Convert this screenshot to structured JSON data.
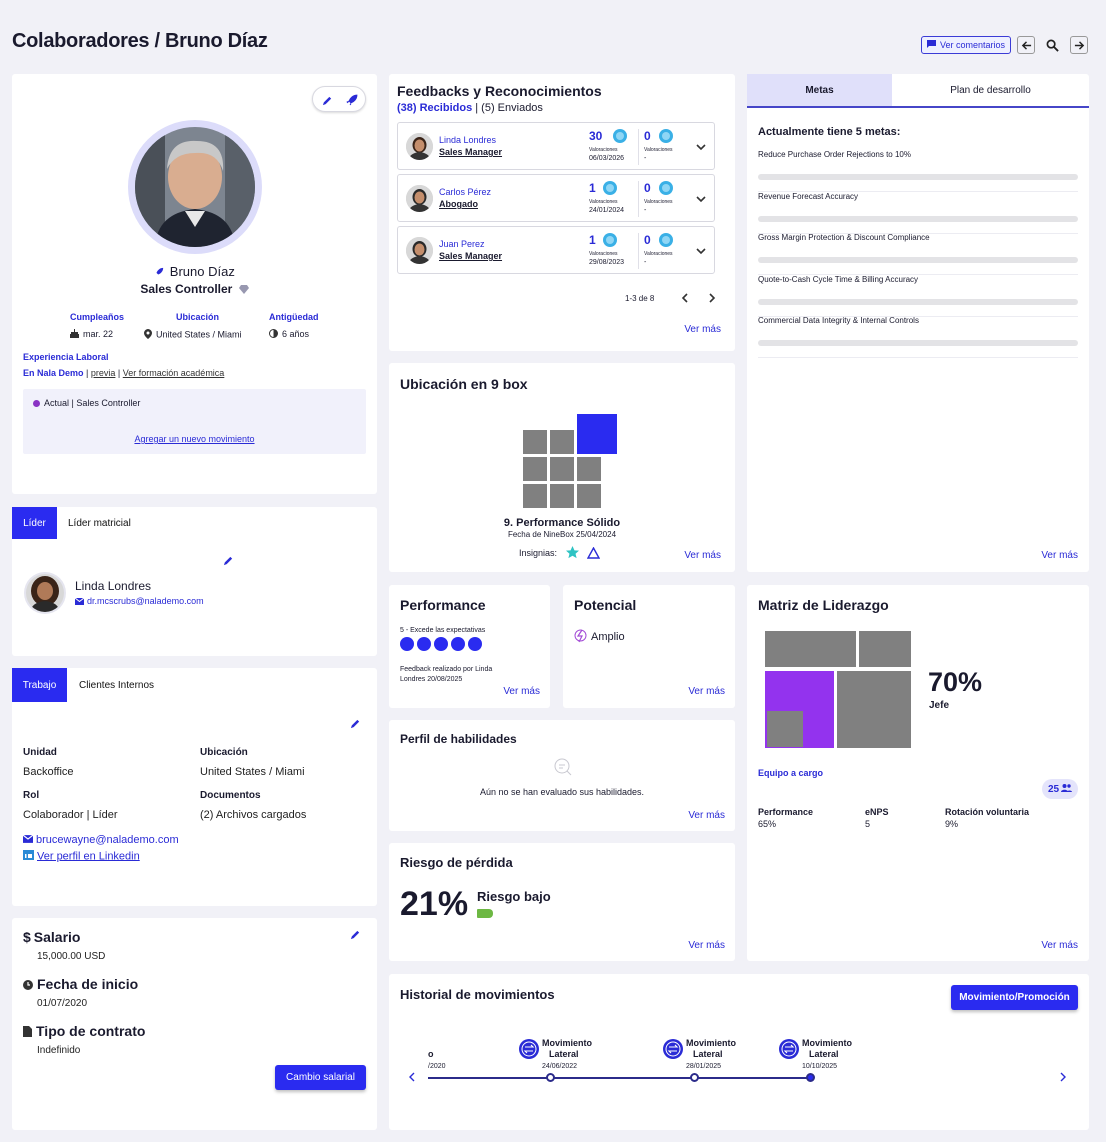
{
  "header": {
    "title": "Colaboradores / Bruno Díaz",
    "comments_label": "Ver comentarios"
  },
  "profile": {
    "name": "Bruno Díaz",
    "role": "Sales Controller",
    "birthday_label": "Cumpleaños",
    "birthday_value": "mar. 22",
    "location_label": "Ubicación",
    "location_value": "United States / Miami",
    "seniority_label": "Antigüedad",
    "seniority_value": "6 años",
    "exp_title": "Experiencia Laboral",
    "exp_link1": "En Nala Demo",
    "exp_link2": "previa",
    "exp_link3": "Ver formación académica",
    "current_label": "Actual | Sales Controller",
    "add_movement": "Agregar un nuevo movimiento"
  },
  "leader": {
    "tab1": "Líder",
    "tab2": "Líder matricial",
    "name": "Linda Londres",
    "email": "dr.mcscrubs@nalademo.com"
  },
  "work": {
    "tab1": "Trabajo",
    "tab2": "Clientes Internos",
    "unit_label": "Unidad",
    "unit_value": "Backoffice",
    "loc_label": "Ubicación",
    "loc_value": "United States / Miami",
    "role_label": "Rol",
    "role_value": "Colaborador | Líder",
    "docs_label": "Documentos",
    "docs_value": "(2) Archivos cargados",
    "email": "brucewayne@nalademo.com",
    "linkedin": "Ver perfil en Linkedin"
  },
  "salary": {
    "salary_label": "Salario",
    "salary_value": "15,000.00 USD",
    "start_label": "Fecha de inicio",
    "start_value": "01/07/2020",
    "contract_label": "Tipo de contrato",
    "contract_value": "Indefinido",
    "button": "Cambio salarial"
  },
  "feedback": {
    "title": "Feedbacks y Reconocimientos",
    "received": "(38) Recibidos",
    "sep": " | ",
    "sent": "(5) Enviados",
    "rows": [
      {
        "name": "Linda Londres",
        "role": "Sales Manager",
        "count1": "30",
        "count2": "0",
        "sub1": "Valoraciones",
        "sub2": "Valoraciones",
        "date": "06/03/2026",
        "dash": "-"
      },
      {
        "name": "Carlos Pérez",
        "role": "Abogado",
        "count1": "1",
        "count2": "0",
        "sub1": "Valoraciones",
        "sub2": "Valoraciones",
        "date": "24/01/2024",
        "dash": "-"
      },
      {
        "name": "Juan Perez",
        "role": "Sales Manager",
        "count1": "1",
        "count2": "0",
        "sub1": "Valoraciones",
        "sub2": "Valoraciones",
        "date": "29/08/2023",
        "dash": "-"
      }
    ],
    "pagination": "1-3 de 8",
    "more": "Ver más"
  },
  "ninebox": {
    "title": "Ubicación en 9 box",
    "label": "9. Performance Sólido",
    "date": "Fecha de NineBox 25/04/2024",
    "badges": "Insignias:",
    "more": "Ver más"
  },
  "goals": {
    "tab1": "Metas",
    "tab2": "Plan de desarrollo",
    "heading": "Actualmente tiene 5 metas:",
    "items": [
      "Reduce Purchase Order Rejections to 10%",
      "Revenue Forecast Accuracy",
      "Gross Margin Protection & Discount Compliance",
      "Quote-to-Cash Cycle Time & Billing Accuracy",
      "Commercial Data Integrity & Internal Controls"
    ],
    "more": "Ver más"
  },
  "performance": {
    "title": "Performance",
    "rating": "5 - Excede las expectativas",
    "rating_value": 5,
    "rating_max": 5,
    "feedback_line1": "Feedback realizado por Linda",
    "feedback_line2": "Londres 20/08/2025",
    "more": "Ver más"
  },
  "potential": {
    "title": "Potencial",
    "value": "Amplio",
    "more": "Ver más"
  },
  "skills": {
    "title": "Perfil de habilidades",
    "empty": "Aún no se han evaluado sus habilidades.",
    "more": "Ver más"
  },
  "risk": {
    "title": "Riesgo de pérdida",
    "pct": "21%",
    "label": "Riesgo bajo",
    "more": "Ver más"
  },
  "leadership": {
    "title": "Matriz de Liderazgo",
    "pct": "70%",
    "label": "Jefe",
    "team": "Equipo a cargo",
    "team_count": "25",
    "perf_label": "Performance",
    "perf_value": "65%",
    "enps_label": "eNPS",
    "enps_value": "5",
    "rot_label": "Rotación voluntaria",
    "rot_value": "9%",
    "more": "Ver más"
  },
  "history": {
    "title": "Historial de movimientos",
    "button": "Movimiento/Promoción",
    "partial_label": "o",
    "partial_date": "/2020",
    "events": [
      {
        "line1": "Movimiento",
        "line2": "Lateral",
        "date": "24/06/2022"
      },
      {
        "line1": "Movimiento",
        "line2": "Lateral",
        "date": "28/01/2025"
      },
      {
        "line1": "Movimiento",
        "line2": "Lateral",
        "date": "10/10/2025"
      }
    ]
  }
}
